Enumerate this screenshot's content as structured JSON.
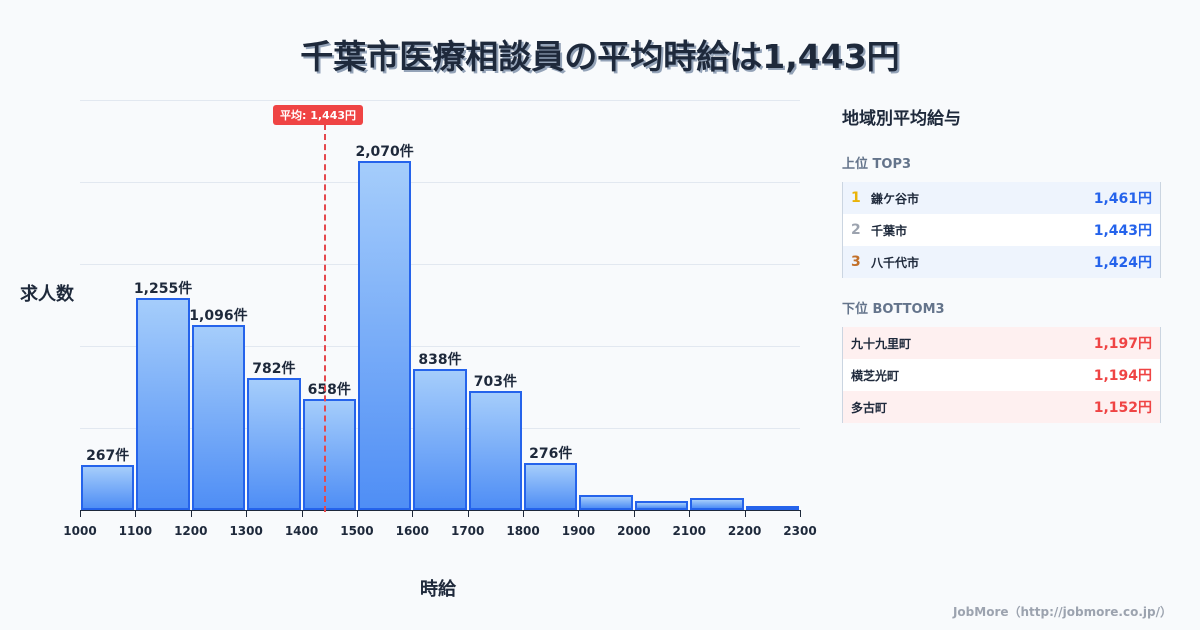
{
  "title": "千葉市医療相談員の平均時給は1,443円",
  "chart_data": {
    "type": "bar",
    "title": "千葉市医療相談員の平均時給は1,443円",
    "xlabel": "時給",
    "ylabel": "求人数",
    "x_ticks": [
      "1000",
      "1100",
      "1200",
      "1300",
      "1400",
      "1500",
      "1600",
      "1700",
      "1800",
      "1900",
      "2000",
      "2100",
      "2200",
      "2300"
    ],
    "categories": [
      "1000-1100",
      "1100-1200",
      "1200-1300",
      "1300-1400",
      "1400-1500",
      "1500-1600",
      "1600-1700",
      "1700-1800",
      "1800-1900",
      "1900-2000",
      "2000-2100",
      "2100-2200",
      "2200-2300"
    ],
    "values": [
      267,
      1255,
      1096,
      782,
      658,
      2070,
      838,
      703,
      276,
      89,
      53,
      71,
      18
    ],
    "labels": [
      "267件",
      "1,255件",
      "1,096件",
      "782件",
      "658件",
      "2,070件",
      "838件",
      "703件",
      "276件",
      "",
      "",
      "",
      ""
    ],
    "ylim": [
      0,
      2430
    ],
    "grid": true,
    "average": {
      "value": 1443,
      "label": "平均: 1,443円"
    }
  },
  "panel": {
    "title": "地域別平均給与",
    "top": {
      "title": "上位 TOP3",
      "items": [
        {
          "rank": "1",
          "name": "鎌ケ谷市",
          "value": "1,461円",
          "rank_color": "#eab308"
        },
        {
          "rank": "2",
          "name": "千葉市",
          "value": "1,443円",
          "rank_color": "#9ca3af"
        },
        {
          "rank": "3",
          "name": "八千代市",
          "value": "1,424円",
          "rank_color": "#c2702a"
        }
      ]
    },
    "bottom": {
      "title": "下位 BOTTOM3",
      "items": [
        {
          "name": "九十九里町",
          "value": "1,197円"
        },
        {
          "name": "横芝光町",
          "value": "1,194円"
        },
        {
          "name": "多古町",
          "value": "1,152円"
        }
      ]
    }
  },
  "footer": "JobMore（http://jobmore.co.jp/）"
}
